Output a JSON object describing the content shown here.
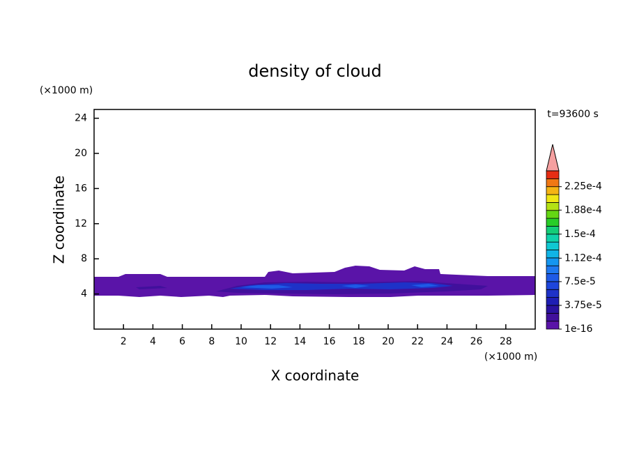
{
  "chart_data": {
    "type": "contour",
    "title": "density of cloud",
    "xlabel": "X coordinate",
    "ylabel": "Z coordinate",
    "x_unit": "(×1000 m)",
    "y_unit": "(×1000 m)",
    "annotation": "t=93600 s",
    "xlim": [
      0,
      30
    ],
    "xticks": [
      2,
      4,
      6,
      8,
      10,
      12,
      14,
      16,
      18,
      20,
      22,
      24,
      26,
      28
    ],
    "ylim": [
      0,
      25
    ],
    "yticks": [
      4,
      8,
      12,
      16,
      20,
      24
    ],
    "colorbar": {
      "lim": [
        0,
        0.00025
      ],
      "ticks": [
        {
          "value": 1e-16,
          "label": "1e-16"
        },
        {
          "value": 3.75e-05,
          "label": "3.75e-5"
        },
        {
          "value": 7.5e-05,
          "label": "7.5e-5"
        },
        {
          "value": 0.000112,
          "label": "1.12e-4"
        },
        {
          "value": 0.00015,
          "label": "1.5e-4"
        },
        {
          "value": 0.000188,
          "label": "1.88e-4"
        },
        {
          "value": 0.000225,
          "label": "2.25e-4"
        }
      ],
      "colors": [
        "#5a14a8",
        "#41109c",
        "#2a12a0",
        "#1e1eb4",
        "#1e32c8",
        "#1e46dc",
        "#1e5ae6",
        "#1e78f0",
        "#1496f0",
        "#10b4e6",
        "#10c8d2",
        "#10d2aa",
        "#14cd78",
        "#28cd28",
        "#64d714",
        "#b4e114",
        "#f0e614",
        "#f5b414",
        "#f07814",
        "#e62d14"
      ],
      "extend_color": "#f5a0a0"
    }
  }
}
